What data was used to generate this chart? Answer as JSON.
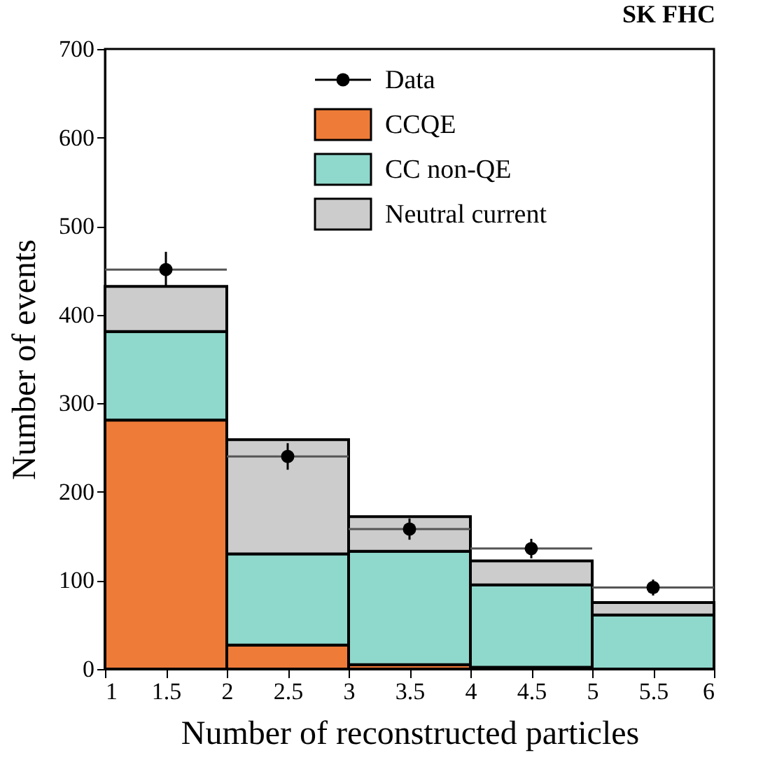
{
  "chart_data": {
    "type": "bar",
    "title": "SK FHC",
    "xlabel": "Number of reconstructed particles",
    "ylabel": "Number of events",
    "x": [
      1.5,
      2.5,
      3.5,
      4.5,
      5.5
    ],
    "stacked": true,
    "series": [
      {
        "name": "Data",
        "type": "scatter",
        "color": "#000000",
        "x": [
          1.5,
          2.5,
          3.5,
          4.5,
          5.5
        ],
        "values": [
          451,
          240,
          158,
          136,
          92
        ],
        "errors": [
          20,
          15,
          12,
          11,
          9
        ],
        "xerrors": [
          0.5,
          0.5,
          0.5,
          0.5,
          0.5
        ]
      },
      {
        "name": "CCQE",
        "color": "#ef7b38",
        "values": [
          281,
          27,
          5,
          2,
          null
        ]
      },
      {
        "name": "CC non-QE",
        "color": "#8fd8cc",
        "values": [
          100,
          103,
          128,
          93,
          61
        ]
      },
      {
        "name": "Neutral current",
        "color": "#cccccc",
        "values": [
          51,
          129,
          39,
          27,
          14
        ]
      }
    ],
    "xlim": [
      1,
      6
    ],
    "xticks": [
      1,
      1.5,
      2,
      2.5,
      3,
      3.5,
      4,
      4.5,
      5,
      5.5,
      6
    ],
    "ylim": [
      0,
      700
    ],
    "yticks": [
      0,
      100,
      200,
      300,
      400,
      500,
      600,
      700
    ],
    "legend": "top",
    "grid": false,
    "marker": "circle"
  }
}
